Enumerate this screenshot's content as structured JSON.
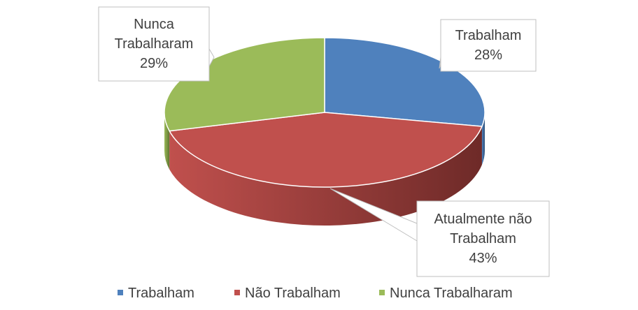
{
  "chart_data": {
    "type": "pie",
    "style": "3d",
    "categories": [
      "Trabalham",
      "Não Trabalham",
      "Nunca Trabalharam"
    ],
    "values": [
      28,
      43,
      29
    ],
    "colors": [
      "#4f81bd",
      "#c0504d",
      "#9bbb59"
    ],
    "side_colors": [
      "#2c4d75",
      "#6e2a28",
      "#5f7530"
    ],
    "data_labels": [
      [
        "Trabalham",
        "28%"
      ],
      [
        "Atualmente não",
        "Trabalham",
        "43%"
      ],
      [
        "Nunca",
        "Trabalharam",
        "29%"
      ]
    ],
    "legend": {
      "position": "bottom",
      "entries": [
        "Trabalham",
        "Não Trabalham",
        "Nunca Trabalharam"
      ]
    }
  }
}
